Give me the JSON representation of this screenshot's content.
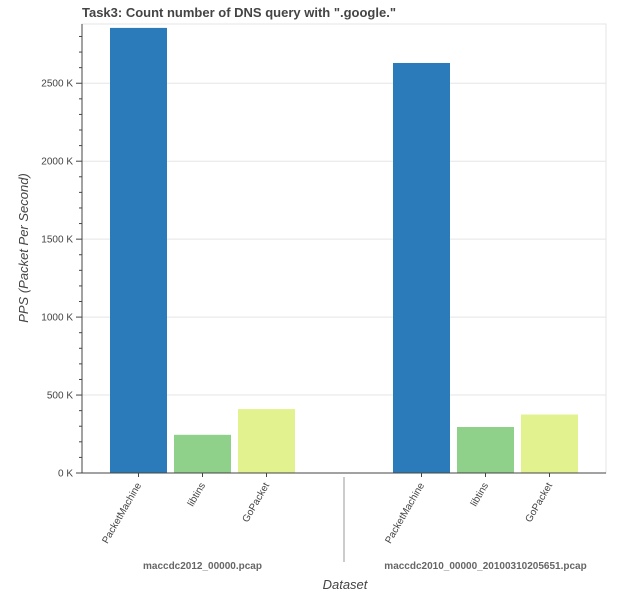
{
  "chart_data": {
    "type": "bar",
    "title": "Task3: Count number of DNS query with \".google.\"",
    "xlabel": "Dataset",
    "ylabel": "PPS (Packet Per Second)",
    "ylim": [
      0,
      2880000
    ],
    "yticks": [
      0,
      500000,
      1000000,
      1500000,
      2000000,
      2500000
    ],
    "ytick_labels": [
      "0 K",
      "500 K",
      "1000 K",
      "1500 K",
      "2000 K",
      "2500 K"
    ],
    "grid": true,
    "groups": [
      {
        "label": "maccdc2012_00000.pcap",
        "categories": [
          "PacketMachine",
          "libtins",
          "GoPacket"
        ],
        "values": [
          2855000,
          245000,
          410000
        ]
      },
      {
        "label": "maccdc2010_00000_20100310205651.pcap",
        "categories": [
          "PacketMachine",
          "libtins",
          "GoPacket"
        ],
        "values": [
          2630000,
          295000,
          375000
        ]
      }
    ],
    "category_colors": {
      "PacketMachine": "#2b7bba",
      "libtins": "#8fd18a",
      "GoPacket": "#e1f28e"
    }
  }
}
